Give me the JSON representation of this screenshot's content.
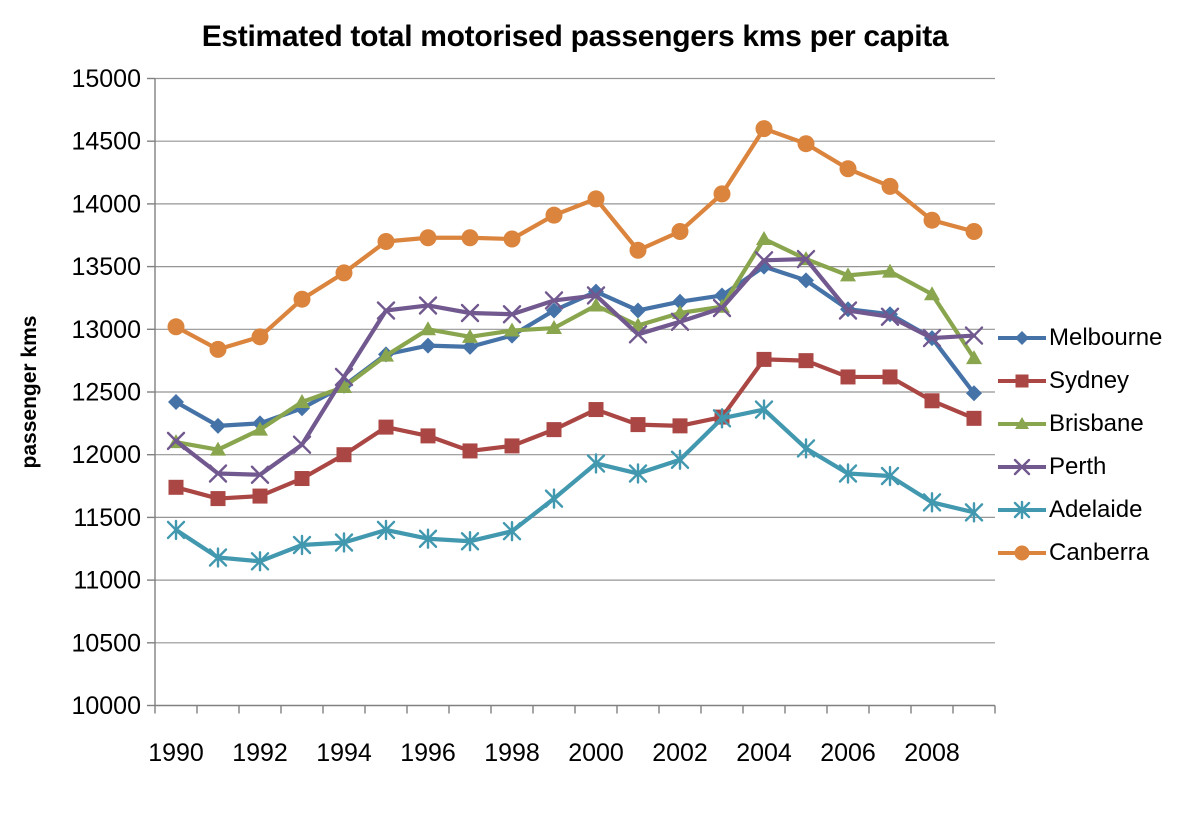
{
  "chart_data": {
    "type": "line",
    "title": "Estimated total motorised passengers kms per capita",
    "ylabel": "passenger kms",
    "xlabel": "",
    "x": [
      1990,
      1991,
      1992,
      1993,
      1994,
      1995,
      1996,
      1997,
      1998,
      1999,
      2000,
      2001,
      2002,
      2003,
      2004,
      2005,
      2006,
      2007,
      2008,
      2009
    ],
    "x_tick_labels": [
      "1990",
      "1992",
      "1994",
      "1996",
      "1998",
      "2000",
      "2002",
      "2004",
      "2006",
      "2008"
    ],
    "y_ticks": [
      "10000",
      "10500",
      "11000",
      "11500",
      "12000",
      "12500",
      "13000",
      "13500",
      "14000",
      "14500",
      "15000"
    ],
    "ylim": [
      10000,
      15000
    ],
    "grid": "horizontal",
    "legend_position": "right",
    "series": [
      {
        "name": "Melbourne",
        "color": "#4572A7",
        "marker": "diamond",
        "values": [
          12420,
          12230,
          12250,
          12370,
          12550,
          12800,
          12870,
          12860,
          12950,
          13150,
          13300,
          13150,
          13220,
          13270,
          13500,
          13390,
          13160,
          13120,
          12930,
          12490
        ]
      },
      {
        "name": "Sydney",
        "color": "#AA4643",
        "marker": "square",
        "values": [
          11740,
          11650,
          11670,
          11810,
          12000,
          12220,
          12150,
          12030,
          12070,
          12200,
          12360,
          12240,
          12230,
          12300,
          12760,
          12750,
          12620,
          12620,
          12430,
          12290
        ]
      },
      {
        "name": "Brisbane",
        "color": "#89A54E",
        "marker": "triangle",
        "values": [
          12100,
          12040,
          12200,
          12420,
          12540,
          12790,
          13000,
          12940,
          12990,
          13010,
          13190,
          13030,
          13130,
          13180,
          13720,
          13560,
          13430,
          13460,
          13280,
          12770
        ]
      },
      {
        "name": "Perth",
        "color": "#71588F",
        "marker": "x",
        "values": [
          12110,
          11850,
          11840,
          12080,
          12620,
          13150,
          13190,
          13130,
          13120,
          13230,
          13270,
          12960,
          13060,
          13170,
          13550,
          13560,
          13150,
          13100,
          12930,
          12950
        ]
      },
      {
        "name": "Adelaide",
        "color": "#4198AF",
        "marker": "asterisk",
        "values": [
          11400,
          11180,
          11150,
          11280,
          11300,
          11400,
          11330,
          11310,
          11390,
          11650,
          11930,
          11850,
          11960,
          12290,
          12360,
          12050,
          11850,
          11830,
          11620,
          11540
        ]
      },
      {
        "name": "Canberra",
        "color": "#DB843D",
        "marker": "circle",
        "values": [
          13020,
          12840,
          12940,
          13240,
          13450,
          13700,
          13730,
          13730,
          13720,
          13910,
          14040,
          13630,
          13780,
          14080,
          14600,
          14480,
          14280,
          14140,
          13870,
          13780
        ]
      }
    ],
    "axis_color": "#808080",
    "grid_color": "#959595"
  }
}
